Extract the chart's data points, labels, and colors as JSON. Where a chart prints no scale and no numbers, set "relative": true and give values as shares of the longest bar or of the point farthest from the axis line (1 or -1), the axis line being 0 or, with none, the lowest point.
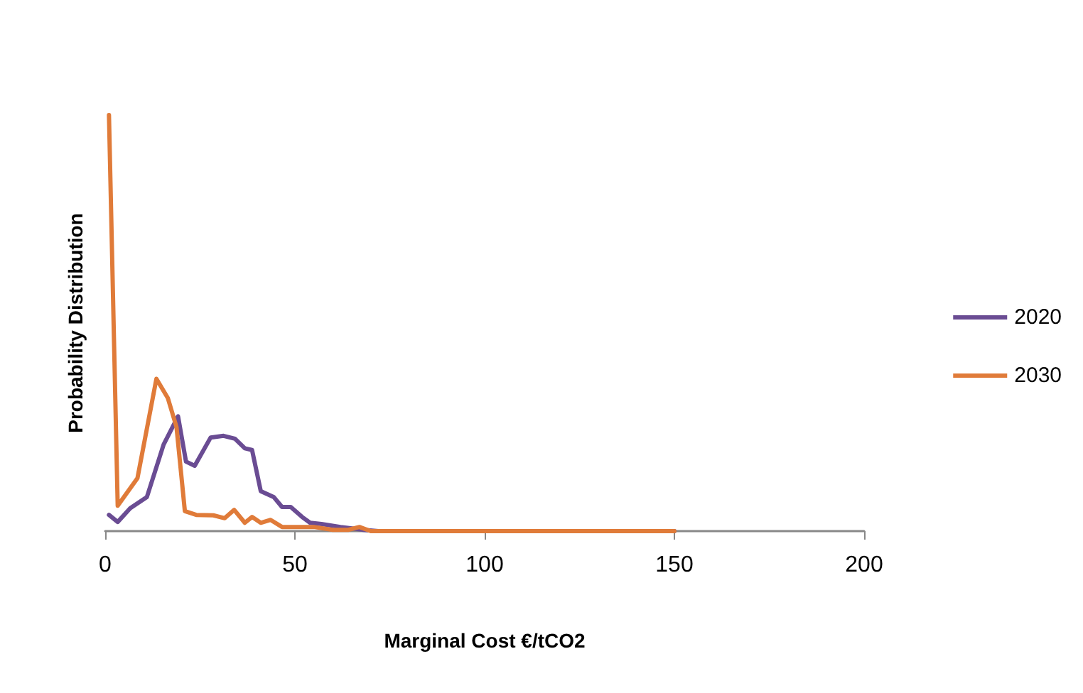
{
  "chart_data": {
    "type": "line",
    "xlabel": "Marginal Cost €/tCO2",
    "ylabel": "Probability Distribution",
    "relative": true,
    "xlim": [
      0,
      200
    ],
    "xticks": [
      0,
      50,
      100,
      150,
      200
    ],
    "grid": false,
    "legend": "right",
    "marker": "none",
    "series": [
      {
        "name": "2020",
        "color": "#6a4c93",
        "x": [
          1,
          3.3,
          6.6,
          11,
          15.4,
          19.2,
          21.3,
          23.6,
          27.8,
          31.2,
          34.2,
          36.8,
          38.7,
          41,
          44.4,
          46.6,
          48.9,
          51.9,
          54,
          57,
          62,
          68,
          72,
          100,
          150
        ],
        "values": [
          0.039,
          0.022,
          0.055,
          0.082,
          0.208,
          0.276,
          0.167,
          0.157,
          0.225,
          0.229,
          0.222,
          0.199,
          0.195,
          0.096,
          0.082,
          0.058,
          0.058,
          0.034,
          0.02,
          0.017,
          0.01,
          0.003,
          0,
          0,
          0
        ]
      },
      {
        "name": "2030",
        "color": "#e07b39",
        "x": [
          1,
          3.3,
          8.5,
          13.5,
          16.5,
          18.8,
          21,
          24,
          28.5,
          31.5,
          34,
          36.8,
          38.7,
          41,
          43.6,
          46.6,
          50,
          55,
          60,
          64,
          67,
          70,
          100,
          150
        ],
        "values": [
          1,
          0.061,
          0.127,
          0.366,
          0.32,
          0.25,
          0.048,
          0.039,
          0.038,
          0.031,
          0.051,
          0.02,
          0.034,
          0.02,
          0.027,
          0.01,
          0.01,
          0.01,
          0.003,
          0.003,
          0.01,
          0,
          0,
          0
        ]
      }
    ]
  }
}
